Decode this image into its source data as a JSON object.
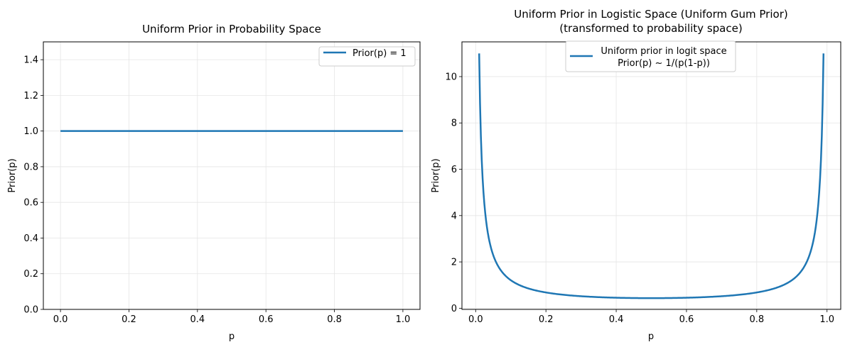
{
  "chart_data": [
    {
      "type": "line",
      "title": "Uniform Prior in Probability Space",
      "xlabel": "p",
      "ylabel": "Prior(p)",
      "xlim": [
        -0.05,
        1.05
      ],
      "ylim": [
        0,
        1.5
      ],
      "xticks": [
        "0.0",
        "0.2",
        "0.4",
        "0.6",
        "0.8",
        "1.0"
      ],
      "yticks": [
        "0.0",
        "0.2",
        "0.4",
        "0.6",
        "0.8",
        "1.0",
        "1.2",
        "1.4"
      ],
      "grid": true,
      "legend_position": "upper-right",
      "series": [
        {
          "name": "Prior(p) = 1",
          "color": "#1f77b4",
          "x": [
            0,
            1
          ],
          "y": [
            1,
            1
          ]
        }
      ]
    },
    {
      "type": "line",
      "title": "Uniform Prior in Logistic Space (Uniform Gum Prior)",
      "subtitle": "(transformed to probability space)",
      "xlabel": "p",
      "ylabel": "Prior(p)",
      "xlim": [
        -0.039,
        1.039
      ],
      "ylim": [
        -0.05,
        11.5
      ],
      "xticks": [
        "0.0",
        "0.2",
        "0.4",
        "0.6",
        "0.8",
        "1.0"
      ],
      "yticks": [
        "0",
        "2",
        "4",
        "6",
        "8",
        "10"
      ],
      "grid": true,
      "legend_position": "upper-center",
      "series": [
        {
          "name": "Uniform prior in logit space",
          "name_line2": "Prior(p) ~ 1/(p(1-p))",
          "color": "#1f77b4",
          "function": "1/(p(1-p)) normalized",
          "x_range": [
            0.01,
            0.99
          ],
          "y_at_edges": 11.0,
          "y_at_center": 0.44
        }
      ]
    }
  ]
}
